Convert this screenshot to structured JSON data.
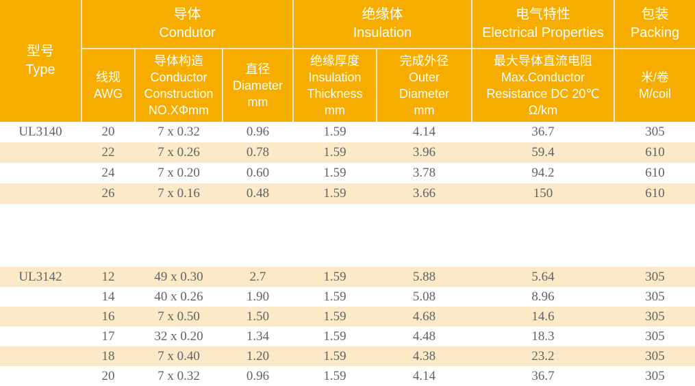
{
  "colors": {
    "header_bg": "#F7AC00",
    "header_text": "#FFFFFF",
    "divider": "#F1E7CC",
    "shaded_row_bg": "#FBE9C8",
    "row_bg": "#FFFFFF",
    "data_text": "#626366"
  },
  "table": {
    "header": {
      "type_label": "型号\nType",
      "groups": [
        {
          "label": "导体\nCondutor"
        },
        {
          "label": "绝缘体\nInsulation"
        },
        {
          "label": "电气特性\nElectrical Properties"
        },
        {
          "label": "包装\nPacking"
        }
      ],
      "subheaders": [
        {
          "label": "线规\nAWG"
        },
        {
          "label": "导体构造\nConductor\nConstruction\nNO.XΦmm"
        },
        {
          "label": "直径\nDiameter\nmm"
        },
        {
          "label": "绝缘厚度\nInsulation\nThickness\nmm"
        },
        {
          "label": "完成外径\nOuter\nDiameter\nmm"
        },
        {
          "label": "最大导体直流电阻\nMax.Conductor\nResistance DC 20℃\nΩ/km"
        },
        {
          "label": "米/卷\nM/coil"
        }
      ]
    },
    "blocks": [
      {
        "type": "UL3140",
        "rows": [
          {
            "awg": "20",
            "construction": "7 x 0.32",
            "diameter": "0.96",
            "insulation_thickness": "1.59",
            "outer_diameter": "4.14",
            "resistance": "36.7",
            "m_per_coil": "305",
            "shaded": false
          },
          {
            "awg": "22",
            "construction": "7 x 0.26",
            "diameter": "0.78",
            "insulation_thickness": "1.59",
            "outer_diameter": "3.96",
            "resistance": "59.4",
            "m_per_coil": "610",
            "shaded": true
          },
          {
            "awg": "24",
            "construction": "7 x 0.20",
            "diameter": "0.60",
            "insulation_thickness": "1.59",
            "outer_diameter": "3.78",
            "resistance": "94.2",
            "m_per_coil": "610",
            "shaded": false
          },
          {
            "awg": "26",
            "construction": "7 x 0.16",
            "diameter": "0.48",
            "insulation_thickness": "1.59",
            "outer_diameter": "3.66",
            "resistance": "150",
            "m_per_coil": "610",
            "shaded": true
          }
        ]
      },
      {
        "type": "UL3142",
        "rows": [
          {
            "awg": "12",
            "construction": "49 x 0.30",
            "diameter": "2.7",
            "insulation_thickness": "1.59",
            "outer_diameter": "5.88",
            "resistance": "5.64",
            "m_per_coil": "305",
            "shaded": true
          },
          {
            "awg": "14",
            "construction": "40 x 0.26",
            "diameter": "1.90",
            "insulation_thickness": "1.59",
            "outer_diameter": "5.08",
            "resistance": "8.96",
            "m_per_coil": "305",
            "shaded": false
          },
          {
            "awg": "16",
            "construction": "7 x 0.50",
            "diameter": "1.50",
            "insulation_thickness": "1.59",
            "outer_diameter": "4.68",
            "resistance": "14.6",
            "m_per_coil": "305",
            "shaded": true
          },
          {
            "awg": "17",
            "construction": "32 x 0.20",
            "diameter": "1.34",
            "insulation_thickness": "1.59",
            "outer_diameter": "4.48",
            "resistance": "18.3",
            "m_per_coil": "305",
            "shaded": false
          },
          {
            "awg": "18",
            "construction": "7 x 0.40",
            "diameter": "1.20",
            "insulation_thickness": "1.59",
            "outer_diameter": "4.38",
            "resistance": "23.2",
            "m_per_coil": "305",
            "shaded": true
          },
          {
            "awg": "20",
            "construction": "7 x 0.32",
            "diameter": "0.96",
            "insulation_thickness": "1.59",
            "outer_diameter": "4.14",
            "resistance": "36.7",
            "m_per_coil": "305",
            "shaded": false
          }
        ]
      }
    ]
  }
}
